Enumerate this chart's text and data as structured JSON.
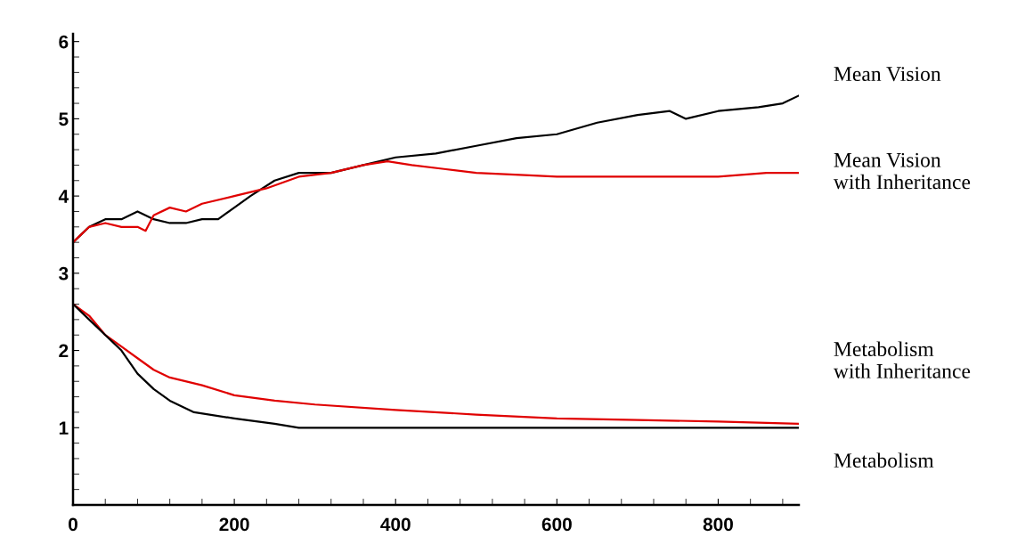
{
  "chart_data": {
    "type": "line",
    "xlim": [
      0,
      900
    ],
    "ylim": [
      0,
      6.1
    ],
    "xticks": [
      0,
      200,
      400,
      600,
      800
    ],
    "yticks": [
      1,
      2,
      3,
      4,
      5,
      6
    ],
    "grid": false,
    "legend": false,
    "marker": "none",
    "line_style": "solid",
    "series": [
      {
        "name": "Mean Vision",
        "color": "#000000",
        "x": [
          0,
          20,
          40,
          60,
          80,
          100,
          120,
          140,
          160,
          180,
          200,
          220,
          250,
          280,
          320,
          360,
          400,
          450,
          500,
          550,
          600,
          650,
          700,
          740,
          760,
          800,
          850,
          880,
          900
        ],
        "values": [
          3.4,
          3.6,
          3.7,
          3.7,
          3.8,
          3.7,
          3.65,
          3.65,
          3.7,
          3.7,
          3.85,
          4.0,
          4.2,
          4.3,
          4.3,
          4.4,
          4.5,
          4.55,
          4.65,
          4.75,
          4.8,
          4.95,
          5.05,
          5.1,
          5.0,
          5.1,
          5.15,
          5.2,
          5.3
        ]
      },
      {
        "name": "Mean Vision\nwith Inheritance",
        "color": "#e00000",
        "x": [
          0,
          20,
          40,
          60,
          80,
          90,
          100,
          120,
          140,
          160,
          200,
          240,
          280,
          320,
          360,
          390,
          420,
          460,
          500,
          560,
          600,
          700,
          800,
          860,
          900
        ],
        "values": [
          3.4,
          3.6,
          3.65,
          3.6,
          3.6,
          3.55,
          3.75,
          3.85,
          3.8,
          3.9,
          4.0,
          4.1,
          4.25,
          4.3,
          4.4,
          4.45,
          4.4,
          4.35,
          4.3,
          4.27,
          4.25,
          4.25,
          4.25,
          4.3,
          4.3
        ]
      },
      {
        "name": "Metabolism\nwith Inheritance",
        "color": "#e00000",
        "x": [
          0,
          20,
          40,
          60,
          80,
          100,
          120,
          160,
          200,
          250,
          300,
          400,
          500,
          600,
          700,
          800,
          900
        ],
        "values": [
          2.6,
          2.45,
          2.2,
          2.05,
          1.9,
          1.75,
          1.65,
          1.55,
          1.42,
          1.35,
          1.3,
          1.23,
          1.17,
          1.12,
          1.1,
          1.08,
          1.05
        ]
      },
      {
        "name": "Metabolism",
        "color": "#000000",
        "x": [
          0,
          20,
          40,
          60,
          80,
          100,
          120,
          150,
          200,
          250,
          280,
          900
        ],
        "values": [
          2.6,
          2.4,
          2.2,
          2.0,
          1.7,
          1.5,
          1.35,
          1.2,
          1.12,
          1.05,
          1.0,
          1.0
        ]
      }
    ]
  }
}
